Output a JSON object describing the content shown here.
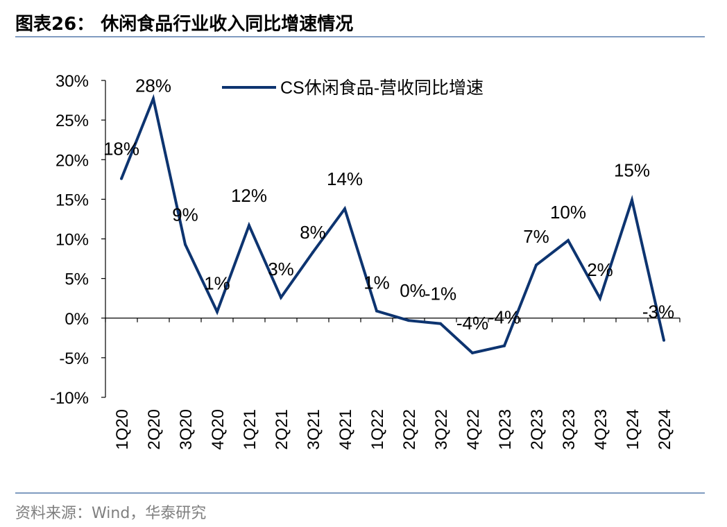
{
  "header": {
    "title": "图表26：  休闲食品行业收入同比增速情况"
  },
  "footer": {
    "source": "资料来源：Wind，华泰研究"
  },
  "chart_data": {
    "type": "line",
    "title": "图表26：  休闲食品行业收入同比增速情况",
    "xlabel": "",
    "ylabel": "",
    "ylim": [
      -10,
      30
    ],
    "yticks": [
      -10,
      -5,
      0,
      5,
      10,
      15,
      20,
      25,
      30
    ],
    "ytick_labels": [
      "-10%",
      "-5%",
      "0%",
      "5%",
      "10%",
      "15%",
      "20%",
      "25%",
      "30%"
    ],
    "categories": [
      "1Q20",
      "2Q20",
      "3Q20",
      "4Q20",
      "1Q21",
      "2Q21",
      "3Q21",
      "4Q21",
      "1Q22",
      "2Q22",
      "3Q22",
      "4Q22",
      "1Q23",
      "2Q23",
      "3Q23",
      "4Q23",
      "1Q24",
      "2Q24"
    ],
    "series": [
      {
        "name": "CS休闲食品-营收同比增速",
        "color": "#0d3470",
        "values": [
          17.6,
          27.7,
          9.3,
          0.8,
          11.7,
          2.6,
          8.3,
          13.8,
          0.9,
          -0.3,
          -0.7,
          -4.4,
          -3.5,
          6.7,
          9.8,
          2.5,
          14.9,
          -2.8
        ],
        "labels": [
          "18%",
          "28%",
          "9%",
          "1%",
          "12%",
          "3%",
          "8%",
          "14%",
          "1%",
          "0%",
          "-1%",
          "-4%",
          "-4%",
          "7%",
          "10%",
          "2%",
          "15%",
          "-3%"
        ]
      }
    ],
    "legend": "top-center",
    "grid": false
  }
}
